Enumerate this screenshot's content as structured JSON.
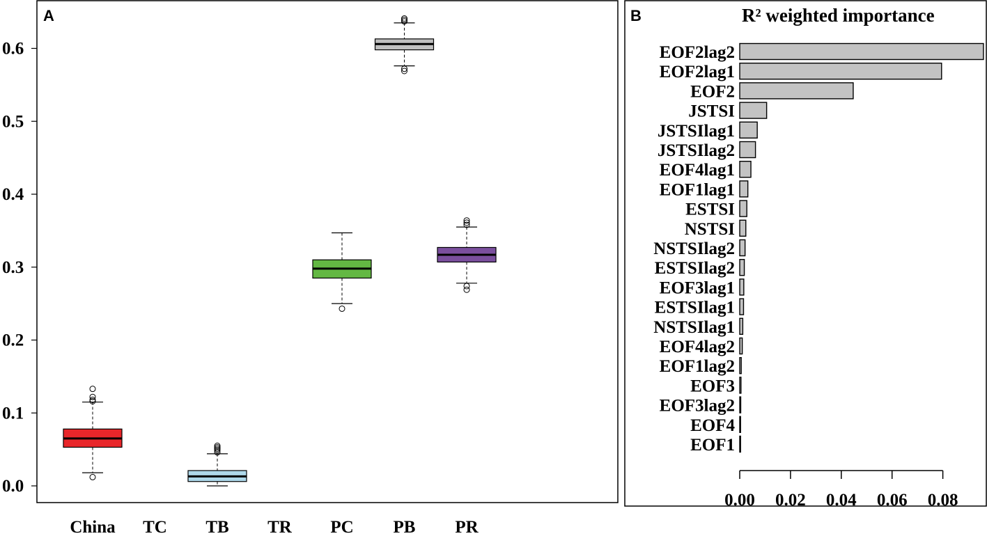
{
  "chart_data": [
    {
      "panel_label": "A",
      "type": "box",
      "categories": [
        "China",
        "TC",
        "TB",
        "TR",
        "PC",
        "PB",
        "PR"
      ],
      "y_ticks": [
        "0.0",
        "0.1",
        "0.2",
        "0.3",
        "0.4",
        "0.5",
        "0.6"
      ],
      "y_tick_values": [
        0.0,
        0.1,
        0.2,
        0.3,
        0.4,
        0.5,
        0.6
      ],
      "ylim": [
        -0.02,
        0.665
      ],
      "boxes": [
        {
          "category": "China",
          "whisker_low": 0.018,
          "q1": 0.053,
          "median": 0.065,
          "q3": 0.078,
          "whisker_high": 0.115,
          "outliers": [
            0.012,
            0.116,
            0.118,
            0.122,
            0.133
          ],
          "color": "#e8262a"
        },
        {
          "category": "TB",
          "whisker_low": 0.0,
          "q1": 0.006,
          "median": 0.013,
          "q3": 0.021,
          "whisker_high": 0.044,
          "outliers": [
            0.046,
            0.049,
            0.051,
            0.053,
            0.055
          ],
          "color": "#aed8ea"
        },
        {
          "category": "PC",
          "whisker_low": 0.25,
          "q1": 0.285,
          "median": 0.298,
          "q3": 0.31,
          "whisker_high": 0.347,
          "outliers": [
            0.243
          ],
          "color": "#63b843"
        },
        {
          "category": "PB",
          "whisker_low": 0.576,
          "q1": 0.598,
          "median": 0.606,
          "q3": 0.613,
          "whisker_high": 0.635,
          "outliers": [
            0.569,
            0.572,
            0.637,
            0.639,
            0.641
          ],
          "color": "#c0c0c0"
        },
        {
          "category": "PR",
          "whisker_low": 0.278,
          "q1": 0.307,
          "median": 0.317,
          "q3": 0.327,
          "whisker_high": 0.355,
          "outliers": [
            0.269,
            0.274,
            0.358,
            0.361,
            0.364
          ],
          "color": "#7b4f9e"
        }
      ]
    },
    {
      "panel_label": "B",
      "type": "bar",
      "orientation": "horizontal",
      "title": "R² weighted importance",
      "x_ticks": [
        "0.00",
        "0.02",
        "0.04",
        "0.06",
        "0.08"
      ],
      "x_tick_values": [
        0.0,
        0.02,
        0.04,
        0.06,
        0.08
      ],
      "xlim": [
        0,
        0.096
      ],
      "bar_color": "#c3c3c3",
      "categories": [
        "EOF2lag2",
        "EOF2lag1",
        "EOF2",
        "JSTSI",
        "JSTSIlag1",
        "JSTSIlag2",
        "EOF4lag1",
        "EOF1lag1",
        "ESTSI",
        "NSTSI",
        "NSTSIlag2",
        "ESTSIlag2",
        "EOF3lag1",
        "ESTSIlag1",
        "NSTSIlag1",
        "EOF4lag2",
        "EOF1lag2",
        "EOF3",
        "EOF3lag2",
        "EOF4",
        "EOF1"
      ],
      "values": [
        0.096,
        0.0795,
        0.0447,
        0.0106,
        0.0069,
        0.0062,
        0.0044,
        0.0032,
        0.0028,
        0.0024,
        0.0021,
        0.0018,
        0.0016,
        0.0015,
        0.0012,
        0.001,
        0.0006,
        0.0005,
        0.0004,
        0.0003,
        0.0002
      ]
    }
  ]
}
